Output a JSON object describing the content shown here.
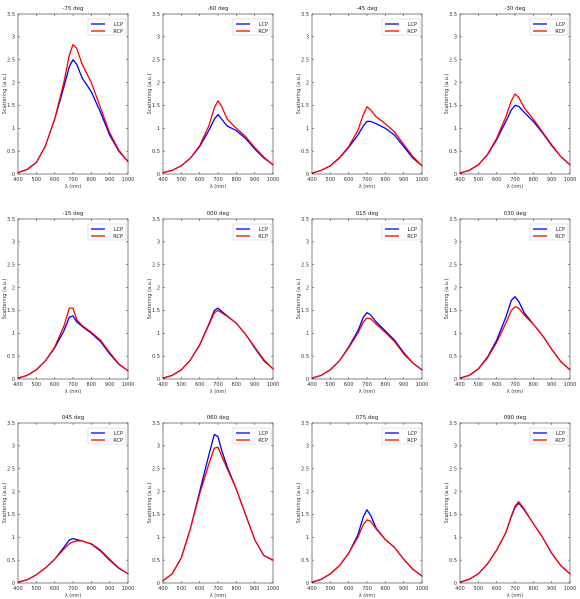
{
  "figure": {
    "colors": {
      "LCP": "#0000ff",
      "RCP": "#ff0000"
    }
  },
  "chart_data": [
    {
      "type": "line",
      "title": "-75 deg",
      "xlabel": "λ (nm)",
      "ylabel": "Scattering (a.u.)",
      "xlim": [
        400,
        1000
      ],
      "ylim": [
        0,
        3.5
      ],
      "xticks": [
        400,
        500,
        600,
        700,
        800,
        900,
        1000
      ],
      "yticks": [
        0,
        0.5,
        1,
        1.5,
        2,
        2.5,
        3,
        3.5
      ],
      "legend": "top-right",
      "grid": false,
      "x": [
        400,
        450,
        500,
        550,
        600,
        650,
        680,
        700,
        720,
        750,
        800,
        850,
        900,
        950,
        1000
      ],
      "series": [
        {
          "name": "LCP",
          "values": [
            0.03,
            0.1,
            0.25,
            0.62,
            1.2,
            1.9,
            2.35,
            2.5,
            2.4,
            2.1,
            1.8,
            1.35,
            0.85,
            0.5,
            0.27
          ]
        },
        {
          "name": "RCP",
          "values": [
            0.03,
            0.1,
            0.25,
            0.62,
            1.2,
            2.0,
            2.6,
            2.83,
            2.75,
            2.4,
            2.0,
            1.45,
            0.9,
            0.52,
            0.27
          ]
        }
      ]
    },
    {
      "type": "line",
      "title": "-60 deg",
      "xlabel": "λ (nm)",
      "ylabel": "Scattering (a.u.)",
      "xlim": [
        400,
        1000
      ],
      "ylim": [
        0,
        3.5
      ],
      "xticks": [
        400,
        500,
        600,
        700,
        800,
        900,
        1000
      ],
      "yticks": [
        0,
        0.5,
        1,
        1.5,
        2,
        2.5,
        3,
        3.5
      ],
      "legend": "top-right",
      "grid": false,
      "x": [
        400,
        450,
        500,
        550,
        600,
        650,
        680,
        700,
        720,
        750,
        800,
        850,
        900,
        950,
        1000
      ],
      "series": [
        {
          "name": "LCP",
          "values": [
            0.03,
            0.08,
            0.18,
            0.35,
            0.6,
            0.95,
            1.2,
            1.3,
            1.2,
            1.05,
            0.95,
            0.78,
            0.55,
            0.35,
            0.2
          ]
        },
        {
          "name": "RCP",
          "values": [
            0.03,
            0.08,
            0.18,
            0.35,
            0.62,
            1.05,
            1.45,
            1.6,
            1.48,
            1.2,
            1.0,
            0.82,
            0.58,
            0.37,
            0.2
          ]
        }
      ]
    },
    {
      "type": "line",
      "title": "-45 deg",
      "xlabel": "λ (nm)",
      "ylabel": "Scattering (a.u.)",
      "xlim": [
        400,
        1000
      ],
      "ylim": [
        0,
        3.5
      ],
      "xticks": [
        400,
        500,
        600,
        700,
        800,
        900,
        1000
      ],
      "yticks": [
        0,
        0.5,
        1,
        1.5,
        2,
        2.5,
        3,
        3.5
      ],
      "legend": "top-right",
      "grid": false,
      "x": [
        400,
        450,
        500,
        550,
        600,
        650,
        680,
        700,
        720,
        750,
        800,
        850,
        900,
        950,
        1000
      ],
      "series": [
        {
          "name": "LCP",
          "values": [
            0.02,
            0.08,
            0.18,
            0.35,
            0.58,
            0.85,
            1.05,
            1.15,
            1.15,
            1.1,
            1.0,
            0.85,
            0.6,
            0.35,
            0.18
          ]
        },
        {
          "name": "RCP",
          "values": [
            0.02,
            0.08,
            0.18,
            0.36,
            0.6,
            0.95,
            1.3,
            1.47,
            1.4,
            1.25,
            1.1,
            0.92,
            0.65,
            0.38,
            0.18
          ]
        }
      ]
    },
    {
      "type": "line",
      "title": "-30 deg",
      "xlabel": "λ (nm)",
      "ylabel": "Scattering (a.u.)",
      "xlim": [
        400,
        1000
      ],
      "ylim": [
        0,
        3.5
      ],
      "xticks": [
        400,
        500,
        600,
        700,
        800,
        900,
        1000
      ],
      "yticks": [
        0,
        0.5,
        1,
        1.5,
        2,
        2.5,
        3,
        3.5
      ],
      "legend": "top-right",
      "grid": false,
      "x": [
        400,
        450,
        500,
        550,
        600,
        650,
        680,
        700,
        720,
        750,
        800,
        850,
        900,
        950,
        1000
      ],
      "series": [
        {
          "name": "LCP",
          "values": [
            0.02,
            0.08,
            0.2,
            0.42,
            0.75,
            1.15,
            1.4,
            1.5,
            1.48,
            1.35,
            1.15,
            0.9,
            0.62,
            0.38,
            0.2
          ]
        },
        {
          "name": "RCP",
          "values": [
            0.02,
            0.08,
            0.2,
            0.43,
            0.78,
            1.25,
            1.6,
            1.75,
            1.68,
            1.45,
            1.2,
            0.92,
            0.64,
            0.38,
            0.2
          ]
        }
      ]
    },
    {
      "type": "line",
      "title": "-15 deg",
      "xlabel": "λ (nm)",
      "ylabel": "Scattering (a.u.)",
      "xlim": [
        400,
        1000
      ],
      "ylim": [
        0,
        3.5
      ],
      "xticks": [
        400,
        500,
        600,
        700,
        800,
        900,
        1000
      ],
      "yticks": [
        0,
        0.5,
        1,
        1.5,
        2,
        2.5,
        3,
        3.5
      ],
      "legend": "top-right",
      "grid": false,
      "x": [
        400,
        450,
        500,
        550,
        600,
        650,
        680,
        700,
        720,
        750,
        800,
        850,
        900,
        950,
        1000
      ],
      "series": [
        {
          "name": "LCP",
          "values": [
            0.02,
            0.08,
            0.2,
            0.4,
            0.68,
            1.05,
            1.35,
            1.38,
            1.25,
            1.15,
            1.0,
            0.82,
            0.55,
            0.32,
            0.18
          ]
        },
        {
          "name": "RCP",
          "values": [
            0.02,
            0.08,
            0.2,
            0.4,
            0.7,
            1.15,
            1.55,
            1.55,
            1.3,
            1.17,
            1.02,
            0.85,
            0.58,
            0.33,
            0.18
          ]
        }
      ]
    },
    {
      "type": "line",
      "title": "000 deg",
      "xlabel": "λ (nm)",
      "ylabel": "Scattering (a.u.)",
      "xlim": [
        400,
        1000
      ],
      "ylim": [
        0,
        3.5
      ],
      "xticks": [
        400,
        500,
        600,
        700,
        800,
        900,
        1000
      ],
      "yticks": [
        0,
        0.5,
        1,
        1.5,
        2,
        2.5,
        3,
        3.5
      ],
      "legend": "top-right",
      "grid": false,
      "x": [
        400,
        450,
        500,
        550,
        600,
        650,
        680,
        700,
        720,
        750,
        800,
        850,
        900,
        950,
        1000
      ],
      "series": [
        {
          "name": "LCP",
          "values": [
            0.02,
            0.08,
            0.2,
            0.42,
            0.75,
            1.2,
            1.5,
            1.55,
            1.48,
            1.38,
            1.22,
            0.98,
            0.68,
            0.4,
            0.22
          ]
        },
        {
          "name": "RCP",
          "values": [
            0.02,
            0.08,
            0.2,
            0.42,
            0.74,
            1.18,
            1.45,
            1.5,
            1.45,
            1.37,
            1.22,
            0.98,
            0.7,
            0.42,
            0.22
          ]
        }
      ]
    },
    {
      "type": "line",
      "title": "015 deg",
      "xlabel": "λ (nm)",
      "ylabel": "Scattering (a.u.)",
      "xlim": [
        400,
        1000
      ],
      "ylim": [
        0,
        3.5
      ],
      "xticks": [
        400,
        500,
        600,
        700,
        800,
        900,
        1000
      ],
      "yticks": [
        0,
        0.5,
        1,
        1.5,
        2,
        2.5,
        3,
        3.5
      ],
      "legend": "top-right",
      "grid": false,
      "x": [
        400,
        450,
        500,
        550,
        600,
        650,
        680,
        700,
        720,
        750,
        800,
        850,
        900,
        950,
        1000
      ],
      "series": [
        {
          "name": "LCP",
          "values": [
            0.02,
            0.08,
            0.2,
            0.4,
            0.7,
            1.05,
            1.35,
            1.45,
            1.4,
            1.25,
            1.05,
            0.85,
            0.58,
            0.35,
            0.2
          ]
        },
        {
          "name": "RCP",
          "values": [
            0.02,
            0.08,
            0.2,
            0.4,
            0.68,
            1.0,
            1.25,
            1.33,
            1.32,
            1.2,
            1.02,
            0.82,
            0.55,
            0.35,
            0.2
          ]
        }
      ]
    },
    {
      "type": "line",
      "title": "030 deg",
      "xlabel": "λ (nm)",
      "ylabel": "Scattering (a.u.)",
      "xlim": [
        400,
        1000
      ],
      "ylim": [
        0,
        3.5
      ],
      "xticks": [
        400,
        500,
        600,
        700,
        800,
        900,
        1000
      ],
      "yticks": [
        0,
        0.5,
        1,
        1.5,
        2,
        2.5,
        3,
        3.5
      ],
      "legend": "top-right",
      "grid": false,
      "x": [
        400,
        450,
        500,
        550,
        600,
        650,
        680,
        700,
        720,
        750,
        800,
        850,
        900,
        950,
        1000
      ],
      "series": [
        {
          "name": "LCP",
          "values": [
            0.02,
            0.08,
            0.22,
            0.48,
            0.85,
            1.35,
            1.72,
            1.8,
            1.7,
            1.45,
            1.2,
            0.95,
            0.65,
            0.38,
            0.2
          ]
        },
        {
          "name": "RCP",
          "values": [
            0.02,
            0.08,
            0.22,
            0.46,
            0.8,
            1.22,
            1.5,
            1.58,
            1.55,
            1.4,
            1.2,
            0.95,
            0.65,
            0.38,
            0.2
          ]
        }
      ]
    },
    {
      "type": "line",
      "title": "045 deg",
      "xlabel": "λ (nm)",
      "ylabel": "Scattering (a.u.)",
      "xlim": [
        400,
        1000
      ],
      "ylim": [
        0,
        3.5
      ],
      "xticks": [
        400,
        500,
        600,
        700,
        800,
        900,
        1000
      ],
      "yticks": [
        0,
        0.5,
        1,
        1.5,
        2,
        2.5,
        3,
        3.5
      ],
      "legend": "top-right",
      "grid": false,
      "x": [
        400,
        450,
        500,
        550,
        600,
        650,
        680,
        700,
        720,
        750,
        800,
        850,
        900,
        950,
        1000
      ],
      "series": [
        {
          "name": "LCP",
          "values": [
            0.02,
            0.07,
            0.18,
            0.33,
            0.52,
            0.78,
            0.94,
            0.97,
            0.95,
            0.92,
            0.85,
            0.7,
            0.5,
            0.32,
            0.2
          ]
        },
        {
          "name": "RCP",
          "values": [
            0.02,
            0.07,
            0.18,
            0.33,
            0.52,
            0.74,
            0.86,
            0.9,
            0.92,
            0.92,
            0.86,
            0.72,
            0.52,
            0.33,
            0.2
          ]
        }
      ]
    },
    {
      "type": "line",
      "title": "060 deg",
      "xlabel": "λ (nm)",
      "ylabel": "Scattering (a.u.)",
      "xlim": [
        400,
        1000
      ],
      "ylim": [
        0,
        3.5
      ],
      "xticks": [
        400,
        500,
        600,
        700,
        800,
        900,
        1000
      ],
      "yticks": [
        0,
        0.5,
        1,
        1.5,
        2,
        2.5,
        3,
        3.5
      ],
      "legend": "top-right",
      "grid": false,
      "x": [
        400,
        450,
        500,
        550,
        600,
        650,
        680,
        700,
        720,
        750,
        800,
        850,
        900,
        950,
        1000
      ],
      "series": [
        {
          "name": "LCP",
          "values": [
            0.05,
            0.2,
            0.55,
            1.2,
            2.0,
            2.8,
            3.25,
            3.2,
            2.9,
            2.55,
            2.05,
            1.5,
            0.95,
            0.6,
            0.5
          ]
        },
        {
          "name": "RCP",
          "values": [
            0.05,
            0.2,
            0.55,
            1.2,
            1.95,
            2.6,
            2.95,
            2.97,
            2.78,
            2.5,
            2.05,
            1.5,
            0.95,
            0.6,
            0.5
          ]
        }
      ]
    },
    {
      "type": "line",
      "title": "075 deg",
      "xlabel": "λ (nm)",
      "ylabel": "Scattering (a.u.)",
      "xlim": [
        400,
        1000
      ],
      "ylim": [
        0,
        3.5
      ],
      "xticks": [
        400,
        500,
        600,
        700,
        800,
        900,
        1000
      ],
      "yticks": [
        0,
        0.5,
        1,
        1.5,
        2,
        2.5,
        3,
        3.5
      ],
      "legend": "top-right",
      "grid": false,
      "x": [
        400,
        450,
        500,
        550,
        600,
        650,
        680,
        700,
        720,
        750,
        800,
        850,
        900,
        950,
        1000
      ],
      "series": [
        {
          "name": "LCP",
          "values": [
            0.02,
            0.08,
            0.2,
            0.38,
            0.65,
            1.05,
            1.45,
            1.6,
            1.48,
            1.2,
            0.95,
            0.78,
            0.52,
            0.3,
            0.15
          ]
        },
        {
          "name": "RCP",
          "values": [
            0.02,
            0.08,
            0.2,
            0.38,
            0.65,
            1.0,
            1.28,
            1.38,
            1.35,
            1.18,
            0.95,
            0.78,
            0.52,
            0.3,
            0.15
          ]
        }
      ]
    },
    {
      "type": "line",
      "title": "090 deg",
      "xlabel": "λ (nm)",
      "ylabel": "Scattering (a.u.)",
      "xlim": [
        400,
        1000
      ],
      "ylim": [
        0,
        3.5
      ],
      "xticks": [
        400,
        500,
        600,
        700,
        800,
        900,
        1000
      ],
      "yticks": [
        0,
        0.5,
        1,
        1.5,
        2,
        2.5,
        3,
        3.5
      ],
      "legend": "top-right",
      "grid": false,
      "x": [
        400,
        450,
        500,
        550,
        600,
        650,
        680,
        700,
        720,
        750,
        800,
        850,
        900,
        950,
        1000
      ],
      "series": [
        {
          "name": "LCP",
          "values": [
            0.02,
            0.08,
            0.2,
            0.42,
            0.72,
            1.1,
            1.45,
            1.65,
            1.75,
            1.6,
            1.3,
            1.0,
            0.65,
            0.38,
            0.2
          ]
        },
        {
          "name": "RCP",
          "values": [
            0.02,
            0.08,
            0.2,
            0.42,
            0.72,
            1.1,
            1.47,
            1.68,
            1.78,
            1.62,
            1.3,
            1.0,
            0.65,
            0.38,
            0.2
          ]
        }
      ]
    }
  ]
}
